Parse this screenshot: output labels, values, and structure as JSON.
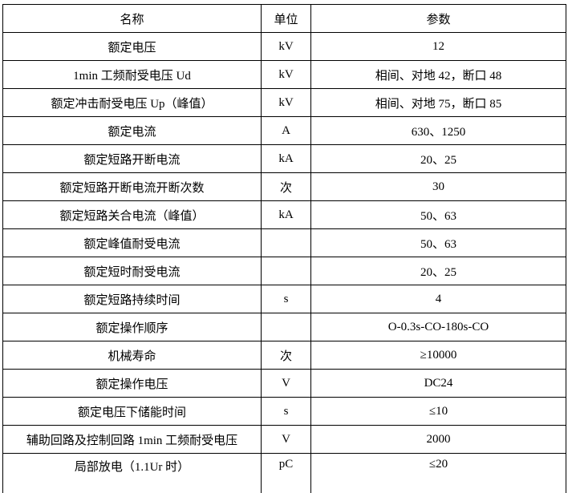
{
  "headers": {
    "name": "名称",
    "unit": "单位",
    "value": "参数"
  },
  "rows": [
    {
      "name": "额定电压",
      "unit": "kV",
      "value": "12"
    },
    {
      "name": "1min 工频耐受电压 Ud",
      "unit": "kV",
      "value": "相间、对地 42，断口 48"
    },
    {
      "name": "额定冲击耐受电压 Up（峰值）",
      "unit": "kV",
      "value": "相间、对地 75，断口 85"
    },
    {
      "name": "额定电流",
      "unit": "A",
      "value": "630、1250"
    },
    {
      "name": "额定短路开断电流",
      "unit": "kA",
      "value": "20、25"
    },
    {
      "name": "额定短路开断电流开断次数",
      "unit": "次",
      "value": "30"
    },
    {
      "name": "额定短路关合电流（峰值）",
      "unit": "kA",
      "value": "50、63"
    },
    {
      "name": "额定峰值耐受电流",
      "unit": "",
      "value": "50、63"
    },
    {
      "name": "额定短时耐受电流",
      "unit": "",
      "value": "20、25"
    },
    {
      "name": "额定短路持续时间",
      "unit": "s",
      "value": "4"
    },
    {
      "name": "额定操作顺序",
      "unit": "",
      "value": "O-0.3s-CO-180s-CO"
    },
    {
      "name": "机械寿命",
      "unit": "次",
      "value": "≥10000"
    },
    {
      "name": "额定操作电压",
      "unit": "V",
      "value": "DC24"
    },
    {
      "name": "额定电压下储能时间",
      "unit": "s",
      "value": "≤10"
    },
    {
      "name": "辅助回路及控制回路 1min 工频耐受电压",
      "unit": "V",
      "value": "2000"
    },
    {
      "name": "局部放电（1.1Ur 时）",
      "unit": "pC",
      "value": "≤20"
    }
  ]
}
